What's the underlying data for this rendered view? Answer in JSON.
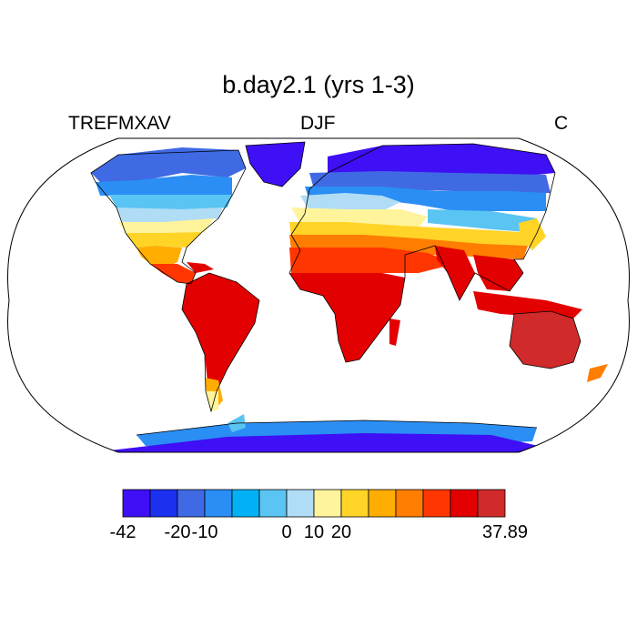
{
  "title": "b.day2.1 (yrs 1-3)",
  "left_label": "TREFMXAV",
  "center_label": "DJF",
  "right_label": "C",
  "palette": [
    "#3f0ff5",
    "#1c30f0",
    "#3f6ae3",
    "#2a8ef5",
    "#00b2f5",
    "#5ac4f3",
    "#b0dcf5",
    "#fff49c",
    "#ffd427",
    "#ffad00",
    "#ff7d00",
    "#ff3600",
    "#e30000",
    "#d12a2a"
  ],
  "colorbar_labels": [
    {
      "text": "-42",
      "boundary": 0
    },
    {
      "text": "-20",
      "boundary": 2
    },
    {
      "text": "-10",
      "boundary": 3
    },
    {
      "text": "0",
      "boundary": 6
    },
    {
      "text": "10",
      "boundary": 7
    },
    {
      "text": "20",
      "boundary": 8
    },
    {
      "text": "37.89",
      "boundary": 14
    }
  ]
}
